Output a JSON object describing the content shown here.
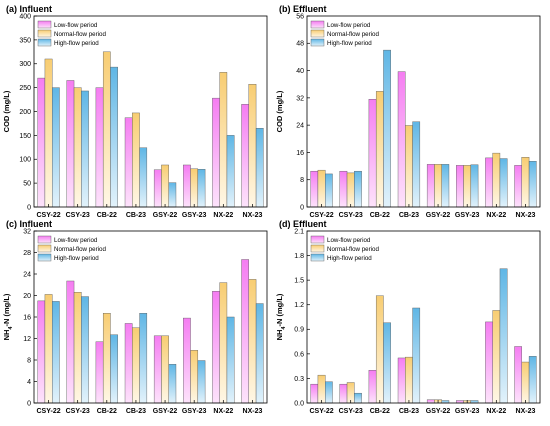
{
  "chart_data": [
    {
      "type": "bar",
      "title": "(a) Influent",
      "ylabel": "COD (mg/L)",
      "ylabel_sub": "",
      "ylim": [
        0,
        400
      ],
      "yticks": [
        "0",
        "50",
        "100",
        "150",
        "200",
        "250",
        "300",
        "350",
        "400"
      ],
      "categories": [
        "CSY-22",
        "CSY-23",
        "CB-22",
        "CB-23",
        "GSY-22",
        "GSY-23",
        "NX-22",
        "NX-23"
      ],
      "legend_position": "top-left",
      "series": [
        {
          "name": "Low-flow period",
          "values": [
            270,
            265,
            250,
            187,
            78,
            88,
            228,
            215
          ]
        },
        {
          "name": "Normal-flow period",
          "values": [
            310,
            250,
            325,
            197,
            88,
            80,
            282,
            257
          ]
        },
        {
          "name": "High-flow period",
          "values": [
            250,
            243,
            293,
            124,
            51,
            79,
            150,
            165
          ]
        }
      ]
    },
    {
      "type": "bar",
      "title": "(b) Effluent",
      "ylabel": "COD (mg/L)",
      "ylabel_sub": "",
      "ylim": [
        0,
        56
      ],
      "yticks": [
        "0",
        "8",
        "16",
        "24",
        "32",
        "40",
        "48",
        "56"
      ],
      "categories": [
        "CSY-22",
        "CSY-23",
        "CB-22",
        "CB-23",
        "GSY-22",
        "GSY-23",
        "NX-22",
        "NX-23"
      ],
      "legend_position": "top-left",
      "series": [
        {
          "name": "Low-flow period",
          "values": [
            10.5,
            10.5,
            31.6,
            39.7,
            12.5,
            12.2,
            14.4,
            12.2
          ]
        },
        {
          "name": "Normal-flow period",
          "values": [
            10.8,
            10.0,
            33.9,
            23.9,
            12.5,
            12.2,
            15.8,
            14.6
          ]
        },
        {
          "name": "High-flow period",
          "values": [
            9.7,
            10.5,
            46.0,
            25.0,
            12.5,
            12.4,
            14.2,
            13.4
          ]
        }
      ]
    },
    {
      "type": "bar",
      "title": "(c) Influent",
      "ylabel": "NH",
      "ylabel_sub": "4",
      "ylabel_tail": "-N (mg/L)",
      "ylim": [
        0,
        32
      ],
      "yticks": [
        "0",
        "4",
        "8",
        "12",
        "16",
        "20",
        "24",
        "28",
        "32"
      ],
      "categories": [
        "CSY-22",
        "CSY-23",
        "CB-22",
        "CB-23",
        "GSY-22",
        "GSY-23",
        "NX-22",
        "NX-23"
      ],
      "legend_position": "top-left",
      "series": [
        {
          "name": "Low-flow period",
          "values": [
            19.0,
            22.7,
            11.4,
            14.8,
            12.5,
            15.8,
            20.8,
            26.7
          ]
        },
        {
          "name": "Normal-flow period",
          "values": [
            20.2,
            20.6,
            16.7,
            14.0,
            12.5,
            9.8,
            22.4,
            23.0
          ]
        },
        {
          "name": "High-flow period",
          "values": [
            18.9,
            19.8,
            12.7,
            16.7,
            7.2,
            7.9,
            16.0,
            18.5
          ]
        }
      ]
    },
    {
      "type": "bar",
      "title": "(d) Effluent",
      "ylabel": "NH",
      "ylabel_sub": "4",
      "ylabel_tail": "-N (mg/L)",
      "ylim": [
        0,
        2.1
      ],
      "yticks": [
        "0.0",
        "0.3",
        "0.6",
        "0.9",
        "1.2",
        "1.5",
        "1.8",
        "2.1"
      ],
      "categories": [
        "CSY-22",
        "CSY-23",
        "CB-22",
        "CB-23",
        "GSY-22",
        "GSY-23",
        "NX-22",
        "NX-23"
      ],
      "legend_position": "top-left",
      "series": [
        {
          "name": "Low-flow period",
          "values": [
            0.23,
            0.23,
            0.4,
            0.55,
            0.04,
            0.03,
            0.99,
            0.69
          ]
        },
        {
          "name": "Normal-flow period",
          "values": [
            0.34,
            0.25,
            1.31,
            0.56,
            0.04,
            0.03,
            1.13,
            0.5
          ]
        },
        {
          "name": "High-flow period",
          "values": [
            0.26,
            0.12,
            0.98,
            1.16,
            0.03,
            0.03,
            1.64,
            0.57
          ]
        }
      ]
    }
  ],
  "colors": {
    "low_top": "#f57df2",
    "low_bottom": "#fde3fb",
    "normal_top": "#f8cd72",
    "normal_bottom": "#fff7e6",
    "high_top": "#5fb6e5",
    "high_bottom": "#e2f2fb"
  }
}
